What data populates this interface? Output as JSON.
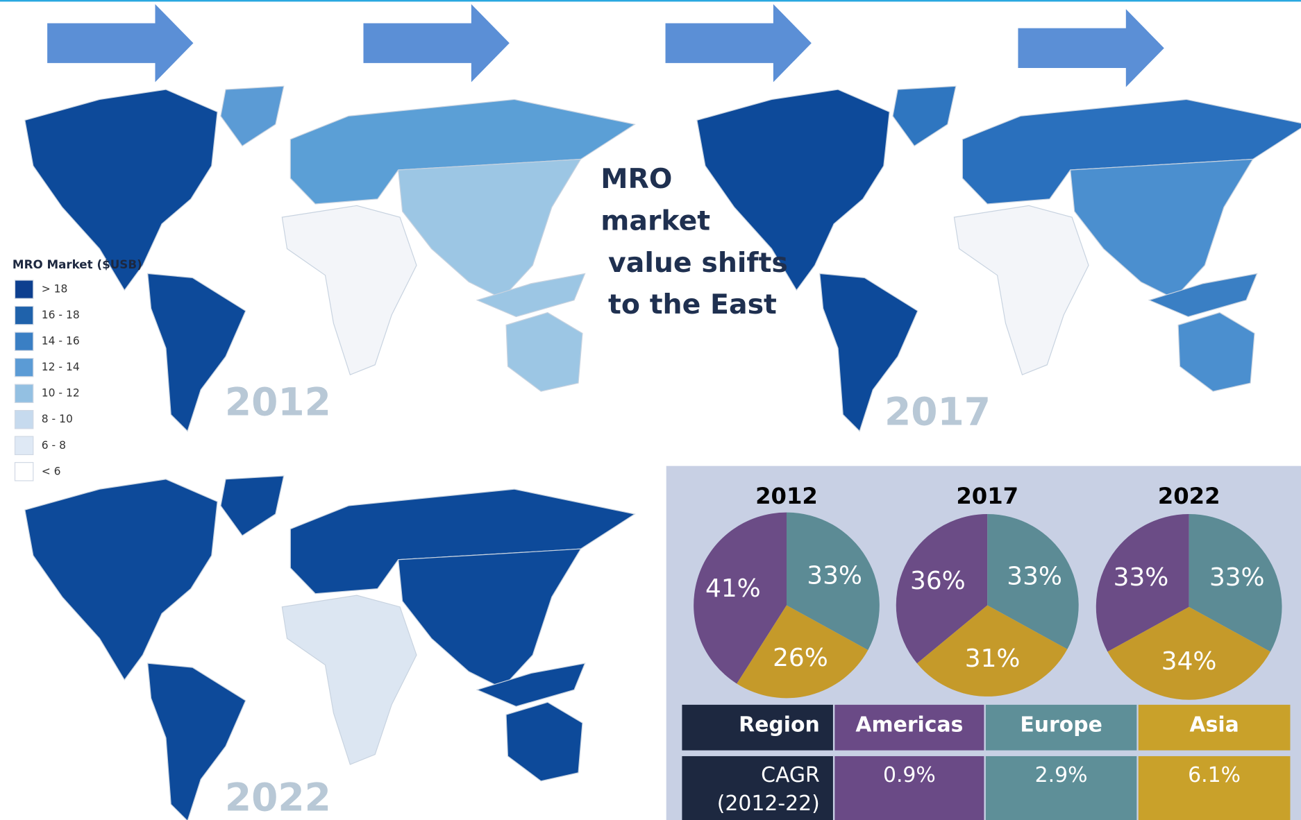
{
  "headline": [
    "MRO",
    "market",
    "value shifts",
    "to the East"
  ],
  "legend": {
    "title": "MRO Market ($USB)",
    "items": [
      {
        "label": "> 18",
        "color": "#0d3f8f"
      },
      {
        "label": "16 - 18",
        "color": "#1f62ab"
      },
      {
        "label": "14 - 16",
        "color": "#3a7fc4"
      },
      {
        "label": "12 - 14",
        "color": "#5b9bd5"
      },
      {
        "label": "10 - 12",
        "color": "#93c0e2"
      },
      {
        "label": "8 - 10",
        "color": "#c6daee"
      },
      {
        "label": "6 - 8",
        "color": "#dfe9f5"
      },
      {
        "label": "< 6",
        "color": "#ffffff"
      }
    ]
  },
  "maps": [
    {
      "year": "2012",
      "fills": [
        "#0d4a9a",
        "#5b9bd5",
        "#0d4a9a",
        "#5b9fd6",
        "#9cc6e4",
        "#f3f5f9",
        "#9cc6e4",
        "#9cc6e4"
      ]
    },
    {
      "year": "2017",
      "fills": [
        "#0d4a9a",
        "#2f76c0",
        "#0d4a9a",
        "#2a70bd",
        "#4b8fcf",
        "#f3f5f9",
        "#4b8fcf",
        "#3a7fc4"
      ]
    },
    {
      "year": "2022",
      "fills": [
        "#0d4a9a",
        "#0d4a9a",
        "#0d4a9a",
        "#0d4a9a",
        "#0d4a9a",
        "#dce6f2",
        "#0d4a9a",
        "#0d4a9a"
      ]
    }
  ],
  "chart_data": [
    {
      "type": "pie",
      "title": "2012",
      "values": [
        41,
        33,
        26
      ],
      "value_labels": [
        "41%",
        "33%",
        "26%"
      ],
      "colors": [
        "#6b4c86",
        "#5c8b95",
        "#c59a2a"
      ]
    },
    {
      "type": "pie",
      "title": "2017",
      "values": [
        36,
        33,
        31
      ],
      "value_labels": [
        "36%",
        "33%",
        "31%"
      ],
      "colors": [
        "#6b4c86",
        "#5c8b95",
        "#c59a2a"
      ]
    },
    {
      "type": "pie",
      "title": "2022",
      "values": [
        33,
        33,
        34
      ],
      "value_labels": [
        "33%",
        "33%",
        "34%"
      ],
      "colors": [
        "#6b4c86",
        "#5c8b95",
        "#c59a2a"
      ]
    }
  ],
  "table": {
    "header": [
      "Region",
      "Americas",
      "Europe",
      "Asia"
    ],
    "rows": [
      {
        "label": [
          "CAGR",
          "(2012-22)"
        ],
        "values": [
          "0.9%",
          "2.9%",
          "6.1%"
        ]
      }
    ]
  }
}
